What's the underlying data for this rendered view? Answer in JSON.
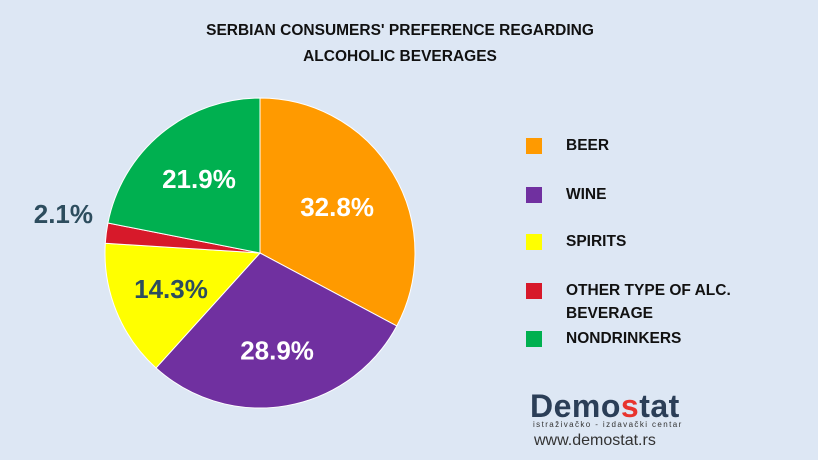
{
  "chart_data": {
    "type": "pie",
    "title_lines": [
      "SERBIAN CONSUMERS' PREFERENCE  REGARDING",
      "ALCOHOLIC BEVERAGES"
    ],
    "slices": [
      {
        "label": "BEER",
        "value": 32.8,
        "display": "32.8%",
        "color": "#ff9a00"
      },
      {
        "label": "WINE",
        "value": 28.9,
        "display": "28.9%",
        "color": "#7030a0"
      },
      {
        "label": "SPIRITS",
        "value": 14.3,
        "display": "14.3%",
        "color": "#ffff00"
      },
      {
        "label": "OTHER TYPE OF ALC. BEVERAGE",
        "value": 2.1,
        "display": "2.1%",
        "color": "#d7192a"
      },
      {
        "label": "NONDRINKERS",
        "value": 21.9,
        "display": "21.9%",
        "color": "#00b050"
      }
    ],
    "legend_position": "right"
  },
  "legend": {
    "items": [
      {
        "lines": [
          "BEER"
        ],
        "color": "#ff9a00"
      },
      {
        "lines": [
          "WINE"
        ],
        "color": "#7030a0"
      },
      {
        "lines": [
          "SPIRITS"
        ],
        "color": "#ffff00"
      },
      {
        "lines": [
          "OTHER TYPE OF ALC.",
          "BEVERAGE"
        ],
        "color": "#d7192a"
      },
      {
        "lines": [
          "NONDRINKERS"
        ],
        "color": "#00b050"
      }
    ]
  },
  "brand": {
    "name_start": "Demo",
    "name_accent": "s",
    "name_end": "tat",
    "tagline": "istraživačko - izdavački  centar",
    "url": "www.demostat.rs"
  }
}
